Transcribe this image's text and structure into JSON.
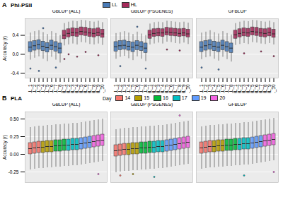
{
  "chart_data": [
    {
      "type": "boxplot",
      "panel": "A",
      "title": "Phi-PSII",
      "ylabel": "Accuracy (r)",
      "legend": "top",
      "grid": true,
      "series": [
        {
          "name": "LL",
          "color": "#4a7bb7"
        },
        {
          "name": "HL",
          "color": "#a52a5a"
        }
      ],
      "categories": [
        "LL_1",
        "LL_2",
        "LL_3",
        "LL_4",
        "LL_5",
        "LL_6",
        "LL_7",
        "LL_8",
        "HL_1",
        "HL_2",
        "HL_3",
        "HL_4",
        "HL_5",
        "HL_6",
        "HL_7",
        "HL_8",
        "HL_9",
        "HL_10"
      ],
      "groups": [
        "LL",
        "LL",
        "LL",
        "LL",
        "LL",
        "LL",
        "LL",
        "LL",
        "HL",
        "HL",
        "HL",
        "HL",
        "HL",
        "HL",
        "HL",
        "HL",
        "HL",
        "HL"
      ],
      "ylim": [
        -0.5,
        0.75
      ],
      "yticks": [
        -0.4,
        {
          "value": 0,
          "label": "0.0"
        },
        0.4
      ],
      "facets": [
        {
          "title": "GBLUP (ALL)",
          "min": [
            -0.12,
            -0.08,
            -0.05,
            -0.1,
            -0.15,
            -0.06,
            -0.12,
            -0.18,
            0.18,
            0.2,
            0.22,
            0.2,
            0.25,
            0.24,
            0.21,
            0.2,
            0.22,
            0.19
          ],
          "q1": [
            0.05,
            0.08,
            0.1,
            0.07,
            0.04,
            0.09,
            0.06,
            0.02,
            0.32,
            0.36,
            0.38,
            0.37,
            0.4,
            0.39,
            0.37,
            0.36,
            0.38,
            0.35
          ],
          "median": [
            0.15,
            0.18,
            0.2,
            0.17,
            0.14,
            0.19,
            0.16,
            0.13,
            0.4,
            0.44,
            0.46,
            0.45,
            0.48,
            0.47,
            0.45,
            0.44,
            0.46,
            0.43
          ],
          "q3": [
            0.26,
            0.28,
            0.3,
            0.27,
            0.24,
            0.29,
            0.26,
            0.23,
            0.5,
            0.53,
            0.55,
            0.54,
            0.57,
            0.56,
            0.54,
            0.53,
            0.55,
            0.52
          ],
          "max": [
            0.45,
            0.48,
            0.5,
            0.46,
            0.42,
            0.48,
            0.44,
            0.4,
            0.65,
            0.68,
            0.7,
            0.69,
            0.72,
            0.71,
            0.69,
            0.68,
            0.7,
            0.67
          ],
          "outliers": [
            [
              0,
              -0.3
            ],
            [
              2,
              -0.35
            ],
            [
              3,
              0.55
            ],
            [
              6,
              -0.28
            ],
            [
              8,
              -0.1
            ],
            [
              9,
              0.0
            ],
            [
              11,
              -0.05
            ],
            [
              13,
              0.05
            ],
            [
              16,
              -0.02
            ]
          ]
        },
        {
          "title": "GBLUP (PSGENES)",
          "min": [
            -0.1,
            -0.06,
            -0.04,
            -0.09,
            -0.13,
            -0.05,
            -0.1,
            -0.15,
            0.2,
            0.22,
            0.24,
            0.22,
            0.26,
            0.25,
            0.23,
            0.22,
            0.24,
            0.21
          ],
          "q1": [
            0.06,
            0.09,
            0.1,
            0.08,
            0.05,
            0.09,
            0.07,
            0.03,
            0.33,
            0.37,
            0.38,
            0.37,
            0.4,
            0.39,
            0.38,
            0.37,
            0.38,
            0.36
          ],
          "median": [
            0.16,
            0.18,
            0.19,
            0.17,
            0.15,
            0.19,
            0.16,
            0.13,
            0.41,
            0.44,
            0.45,
            0.45,
            0.47,
            0.46,
            0.45,
            0.44,
            0.45,
            0.43
          ],
          "q3": [
            0.26,
            0.28,
            0.29,
            0.27,
            0.25,
            0.28,
            0.26,
            0.23,
            0.5,
            0.53,
            0.54,
            0.53,
            0.56,
            0.55,
            0.54,
            0.53,
            0.54,
            0.52
          ],
          "max": [
            0.44,
            0.46,
            0.48,
            0.45,
            0.42,
            0.47,
            0.43,
            0.4,
            0.64,
            0.67,
            0.68,
            0.67,
            0.7,
            0.69,
            0.68,
            0.67,
            0.68,
            0.66
          ],
          "outliers": [
            [
              1,
              -0.25
            ],
            [
              5,
              0.58
            ],
            [
              7,
              -0.3
            ],
            [
              12,
              0.1
            ],
            [
              15,
              0.08
            ]
          ]
        },
        {
          "title": "GFBLUP",
          "min": [
            -0.11,
            -0.07,
            -0.05,
            -0.1,
            -0.14,
            -0.06,
            -0.11,
            -0.16,
            0.19,
            0.21,
            0.23,
            0.21,
            0.25,
            0.24,
            0.22,
            0.21,
            0.23,
            0.2
          ],
          "q1": [
            0.05,
            0.08,
            0.1,
            0.07,
            0.05,
            0.09,
            0.06,
            0.03,
            0.33,
            0.36,
            0.38,
            0.37,
            0.4,
            0.39,
            0.37,
            0.36,
            0.38,
            0.35
          ],
          "median": [
            0.15,
            0.18,
            0.2,
            0.17,
            0.15,
            0.19,
            0.16,
            0.13,
            0.41,
            0.44,
            0.46,
            0.45,
            0.48,
            0.47,
            0.45,
            0.44,
            0.46,
            0.43
          ],
          "q3": [
            0.26,
            0.28,
            0.3,
            0.27,
            0.25,
            0.29,
            0.26,
            0.23,
            0.5,
            0.53,
            0.55,
            0.54,
            0.57,
            0.56,
            0.54,
            0.53,
            0.55,
            0.52
          ],
          "max": [
            0.45,
            0.47,
            0.5,
            0.46,
            0.43,
            0.48,
            0.44,
            0.41,
            0.65,
            0.68,
            0.7,
            0.69,
            0.72,
            0.71,
            0.69,
            0.68,
            0.7,
            0.67
          ],
          "outliers": [
            [
              0,
              -0.28
            ],
            [
              4,
              -0.32
            ],
            [
              10,
              0.02
            ],
            [
              14,
              0.06
            ],
            [
              17,
              -0.04
            ]
          ]
        }
      ]
    },
    {
      "type": "boxplot",
      "panel": "B",
      "title": "PLA",
      "ylabel": "Accuracy (r)",
      "legend": "top",
      "legend_title": "Day",
      "grid": true,
      "tick_labels": "y",
      "series": [
        {
          "name": "14",
          "color": "#f8766d"
        },
        {
          "name": "15",
          "color": "#b79f00"
        },
        {
          "name": "16",
          "color": "#00ba38"
        },
        {
          "name": "17",
          "color": "#00bfc4"
        },
        {
          "name": "19",
          "color": "#619cff"
        },
        {
          "name": "20",
          "color": "#f564e3"
        }
      ],
      "categories": [
        null,
        null,
        null,
        null,
        null,
        null,
        null,
        null,
        null,
        null,
        null,
        null,
        null,
        null,
        null,
        null,
        null,
        null
      ],
      "groups": [
        "14",
        "14",
        "14",
        "15",
        "15",
        "15",
        "16",
        "16",
        "16",
        "17",
        "17",
        "17",
        "19",
        "19",
        "19",
        "20",
        "20",
        "20"
      ],
      "ylim": [
        -0.4,
        0.6
      ],
      "yticks": [
        -0.25,
        {
          "value": 0,
          "label": "0.00"
        },
        0.25,
        {
          "value": 0.5,
          "label": "0.50"
        }
      ],
      "facets": [
        {
          "title": "GBLUP (ALL)",
          "min": [
            -0.22,
            -0.21,
            -0.2,
            -0.2,
            -0.19,
            -0.19,
            -0.18,
            -0.18,
            -0.17,
            -0.17,
            -0.16,
            -0.16,
            -0.15,
            -0.14,
            -0.13,
            -0.12,
            -0.11,
            -0.1
          ],
          "q1": [
            0.0,
            0.01,
            0.02,
            0.02,
            0.03,
            0.03,
            0.04,
            0.04,
            0.05,
            0.05,
            0.06,
            0.06,
            0.07,
            0.08,
            0.09,
            0.1,
            0.11,
            0.12
          ],
          "median": [
            0.08,
            0.09,
            0.1,
            0.1,
            0.11,
            0.11,
            0.12,
            0.12,
            0.13,
            0.13,
            0.14,
            0.14,
            0.15,
            0.16,
            0.17,
            0.18,
            0.19,
            0.2
          ],
          "q3": [
            0.16,
            0.17,
            0.18,
            0.18,
            0.19,
            0.19,
            0.2,
            0.2,
            0.21,
            0.21,
            0.22,
            0.22,
            0.23,
            0.24,
            0.25,
            0.26,
            0.27,
            0.28
          ],
          "max": [
            0.38,
            0.39,
            0.4,
            0.4,
            0.41,
            0.41,
            0.42,
            0.42,
            0.43,
            0.43,
            0.44,
            0.44,
            0.45,
            0.46,
            0.47,
            0.48,
            0.49,
            0.5
          ],
          "outliers": [
            [
              16,
              -0.28
            ]
          ]
        },
        {
          "title": "GBLUP (PSGENES)",
          "min": [
            -0.26,
            -0.25,
            -0.24,
            -0.24,
            -0.23,
            -0.23,
            -0.22,
            -0.22,
            -0.21,
            -0.21,
            -0.2,
            -0.2,
            -0.19,
            -0.18,
            -0.17,
            -0.16,
            -0.15,
            -0.14
          ],
          "q1": [
            -0.03,
            -0.02,
            -0.01,
            -0.01,
            0.0,
            0.0,
            0.01,
            0.01,
            0.02,
            0.02,
            0.03,
            0.03,
            0.04,
            0.05,
            0.06,
            0.07,
            0.08,
            0.09
          ],
          "median": [
            0.05,
            0.06,
            0.07,
            0.07,
            0.08,
            0.08,
            0.09,
            0.09,
            0.1,
            0.1,
            0.11,
            0.11,
            0.12,
            0.13,
            0.14,
            0.15,
            0.16,
            0.17
          ],
          "q3": [
            0.13,
            0.14,
            0.15,
            0.15,
            0.16,
            0.16,
            0.17,
            0.17,
            0.18,
            0.18,
            0.19,
            0.19,
            0.2,
            0.21,
            0.22,
            0.23,
            0.24,
            0.25
          ],
          "max": [
            0.35,
            0.36,
            0.37,
            0.37,
            0.38,
            0.38,
            0.39,
            0.39,
            0.4,
            0.4,
            0.41,
            0.41,
            0.42,
            0.43,
            0.44,
            0.45,
            0.46,
            0.47
          ],
          "outliers": [
            [
              1,
              -0.3
            ],
            [
              4,
              -0.28
            ],
            [
              9,
              -0.32
            ],
            [
              15,
              0.55
            ]
          ]
        },
        {
          "title": "GFBLUP",
          "min": [
            -0.21,
            -0.2,
            -0.19,
            -0.19,
            -0.18,
            -0.18,
            -0.17,
            -0.17,
            -0.16,
            -0.16,
            -0.15,
            -0.15,
            -0.14,
            -0.13,
            -0.12,
            -0.11,
            -0.1,
            -0.09
          ],
          "q1": [
            0.01,
            0.02,
            0.03,
            0.03,
            0.04,
            0.04,
            0.05,
            0.05,
            0.06,
            0.06,
            0.07,
            0.07,
            0.08,
            0.09,
            0.1,
            0.11,
            0.12,
            0.13
          ],
          "median": [
            0.09,
            0.1,
            0.11,
            0.11,
            0.12,
            0.12,
            0.13,
            0.13,
            0.14,
            0.14,
            0.15,
            0.15,
            0.16,
            0.17,
            0.18,
            0.19,
            0.2,
            0.21
          ],
          "q3": [
            0.17,
            0.18,
            0.19,
            0.19,
            0.2,
            0.2,
            0.21,
            0.21,
            0.22,
            0.22,
            0.23,
            0.23,
            0.24,
            0.25,
            0.26,
            0.27,
            0.28,
            0.29
          ],
          "max": [
            0.39,
            0.4,
            0.41,
            0.41,
            0.42,
            0.42,
            0.43,
            0.43,
            0.44,
            0.44,
            0.45,
            0.45,
            0.46,
            0.47,
            0.48,
            0.49,
            0.5,
            0.51
          ],
          "outliers": [
            [
              10,
              -0.3
            ],
            [
              17,
              -0.25
            ]
          ]
        }
      ]
    }
  ]
}
